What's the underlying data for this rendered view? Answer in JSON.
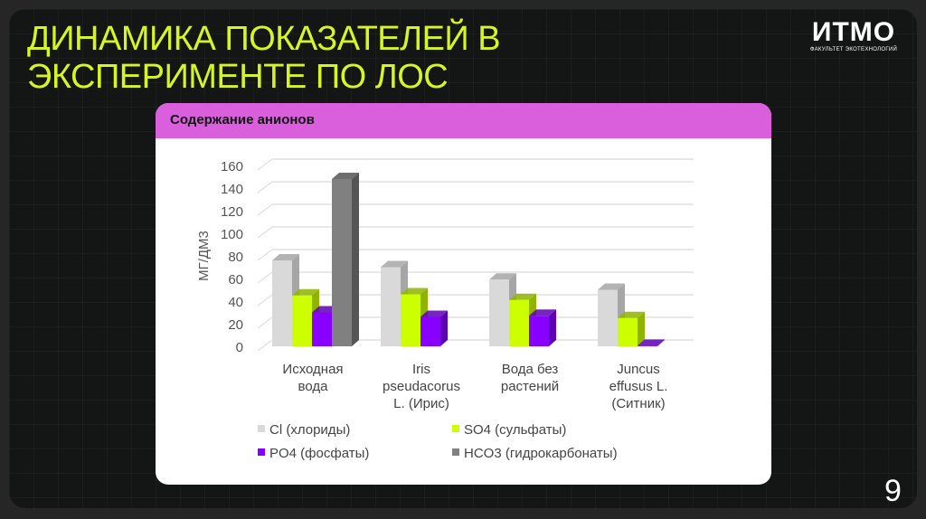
{
  "slide": {
    "title_lines": [
      "ДИНАМИКА ПОКАЗАТЕЛЕЙ В",
      "ЭКСПЕРИМЕНТЕ ПО ЛОС"
    ],
    "logo": {
      "main": "ИТМО",
      "sub": "ФАКУЛЬТЕТ ЭКОТЕХНОЛОГИЙ"
    },
    "card_title": "Содержание анионов",
    "page_number": "9",
    "colors": {
      "title": "#d6f522",
      "card_header": "#d95fdc",
      "background": "#141515"
    }
  },
  "chart_data": {
    "type": "bar",
    "title": "Содержание анионов",
    "xlabel": "",
    "ylabel": "МГ/ДМ3",
    "ylim": [
      0,
      160
    ],
    "yticks": [
      0,
      20,
      40,
      60,
      80,
      100,
      120,
      140,
      160
    ],
    "grid": true,
    "legend_position": "bottom",
    "categories": [
      [
        "Исходная",
        "вода"
      ],
      [
        "Iris",
        "pseudacorus",
        "L. (Ирис)"
      ],
      [
        "Вода без",
        "растений"
      ],
      [
        "Juncus",
        "effusus L.",
        "(Ситник)"
      ]
    ],
    "series": [
      {
        "name": "Cl (хлориды)",
        "color": "#d9d9d9",
        "side": "#a6a6a6",
        "values": [
          76,
          70,
          59,
          50
        ]
      },
      {
        "name": "SO4 (сульфаты)",
        "color": "#ccff00",
        "side": "#8fb300",
        "values": [
          45,
          46,
          41,
          25
        ]
      },
      {
        "name": "PO4 (фосфаты)",
        "color": "#8800ff",
        "side": "#5e00b3",
        "values": [
          30,
          26,
          27,
          0.5
        ]
      },
      {
        "name": "HCO3 (гидрокарбонаты)",
        "color": "#808080",
        "side": "#555555",
        "values": [
          148,
          null,
          null,
          null
        ]
      }
    ]
  }
}
